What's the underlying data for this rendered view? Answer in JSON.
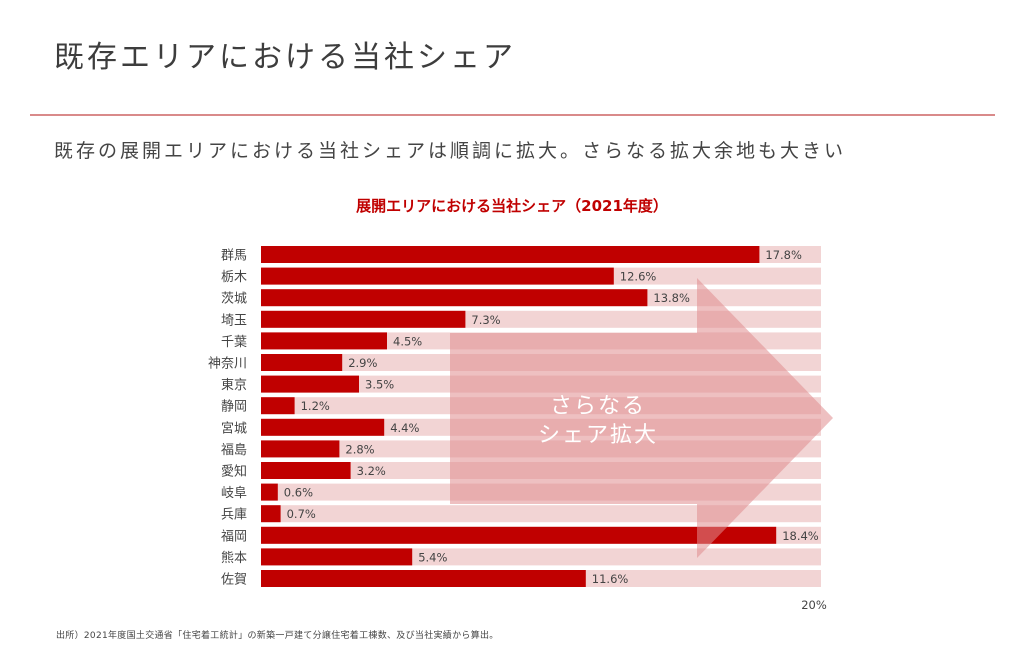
{
  "slide": {
    "title": "既存エリアにおける当社シェア",
    "subtitle": "既存の展開エリアにおける当社シェアは順調に拡大。さらなる拡大余地も大きい",
    "footnote": "出所）2021年度国土交通省「住宅着工統計」の新築一戸建て分譲住宅着工棟数、及び当社実績から算出。"
  },
  "colors": {
    "bar": "#c00000",
    "track": "#f2d4d4",
    "arrow": "#e08c8e",
    "title_accent": "#c00000"
  },
  "chart_data": {
    "type": "bar",
    "orientation": "horizontal",
    "title": "展開エリアにおける当社シェア（2021年度）",
    "categories": [
      "群馬",
      "栃木",
      "茨城",
      "埼玉",
      "千葉",
      "神奈川",
      "東京",
      "静岡",
      "宮城",
      "福島",
      "愛知",
      "岐阜",
      "兵庫",
      "福岡",
      "熊本",
      "佐賀"
    ],
    "values": [
      17.8,
      12.6,
      13.8,
      7.3,
      4.5,
      2.9,
      3.5,
      1.2,
      4.4,
      2.8,
      3.2,
      0.6,
      0.7,
      18.4,
      5.4,
      11.6
    ],
    "value_labels": [
      "17.8%",
      "12.6%",
      "13.8%",
      "7.3%",
      "4.5%",
      "2.9%",
      "3.5%",
      "1.2%",
      "4.4%",
      "2.8%",
      "3.2%",
      "0.6%",
      "0.7%",
      "18.4%",
      "5.4%",
      "11.6%"
    ],
    "xlim": [
      0,
      20
    ],
    "axis_max_label": "20%",
    "annotation": {
      "lines": [
        "さらなる",
        "シェア拡大"
      ],
      "shape": "right-arrow"
    },
    "grid": false,
    "legend": "none"
  }
}
